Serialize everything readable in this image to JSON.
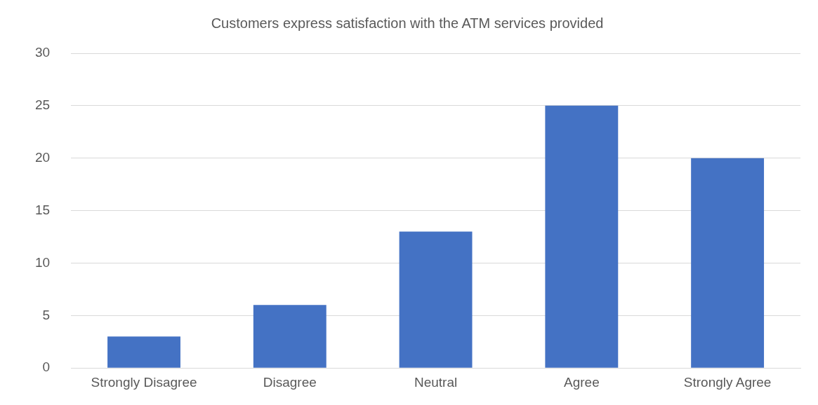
{
  "chart_data": {
    "type": "bar",
    "title": "Customers express satisfaction with the ATM services provided",
    "categories": [
      "Strongly Disagree",
      "Disagree",
      "Neutral",
      "Agree",
      "Strongly Agree"
    ],
    "values": [
      3,
      6,
      13,
      25,
      20
    ],
    "color": "#4472c4",
    "ylim": [
      0,
      30
    ],
    "yticks": [
      0,
      5,
      10,
      15,
      20,
      25,
      30
    ],
    "grid": "y"
  }
}
